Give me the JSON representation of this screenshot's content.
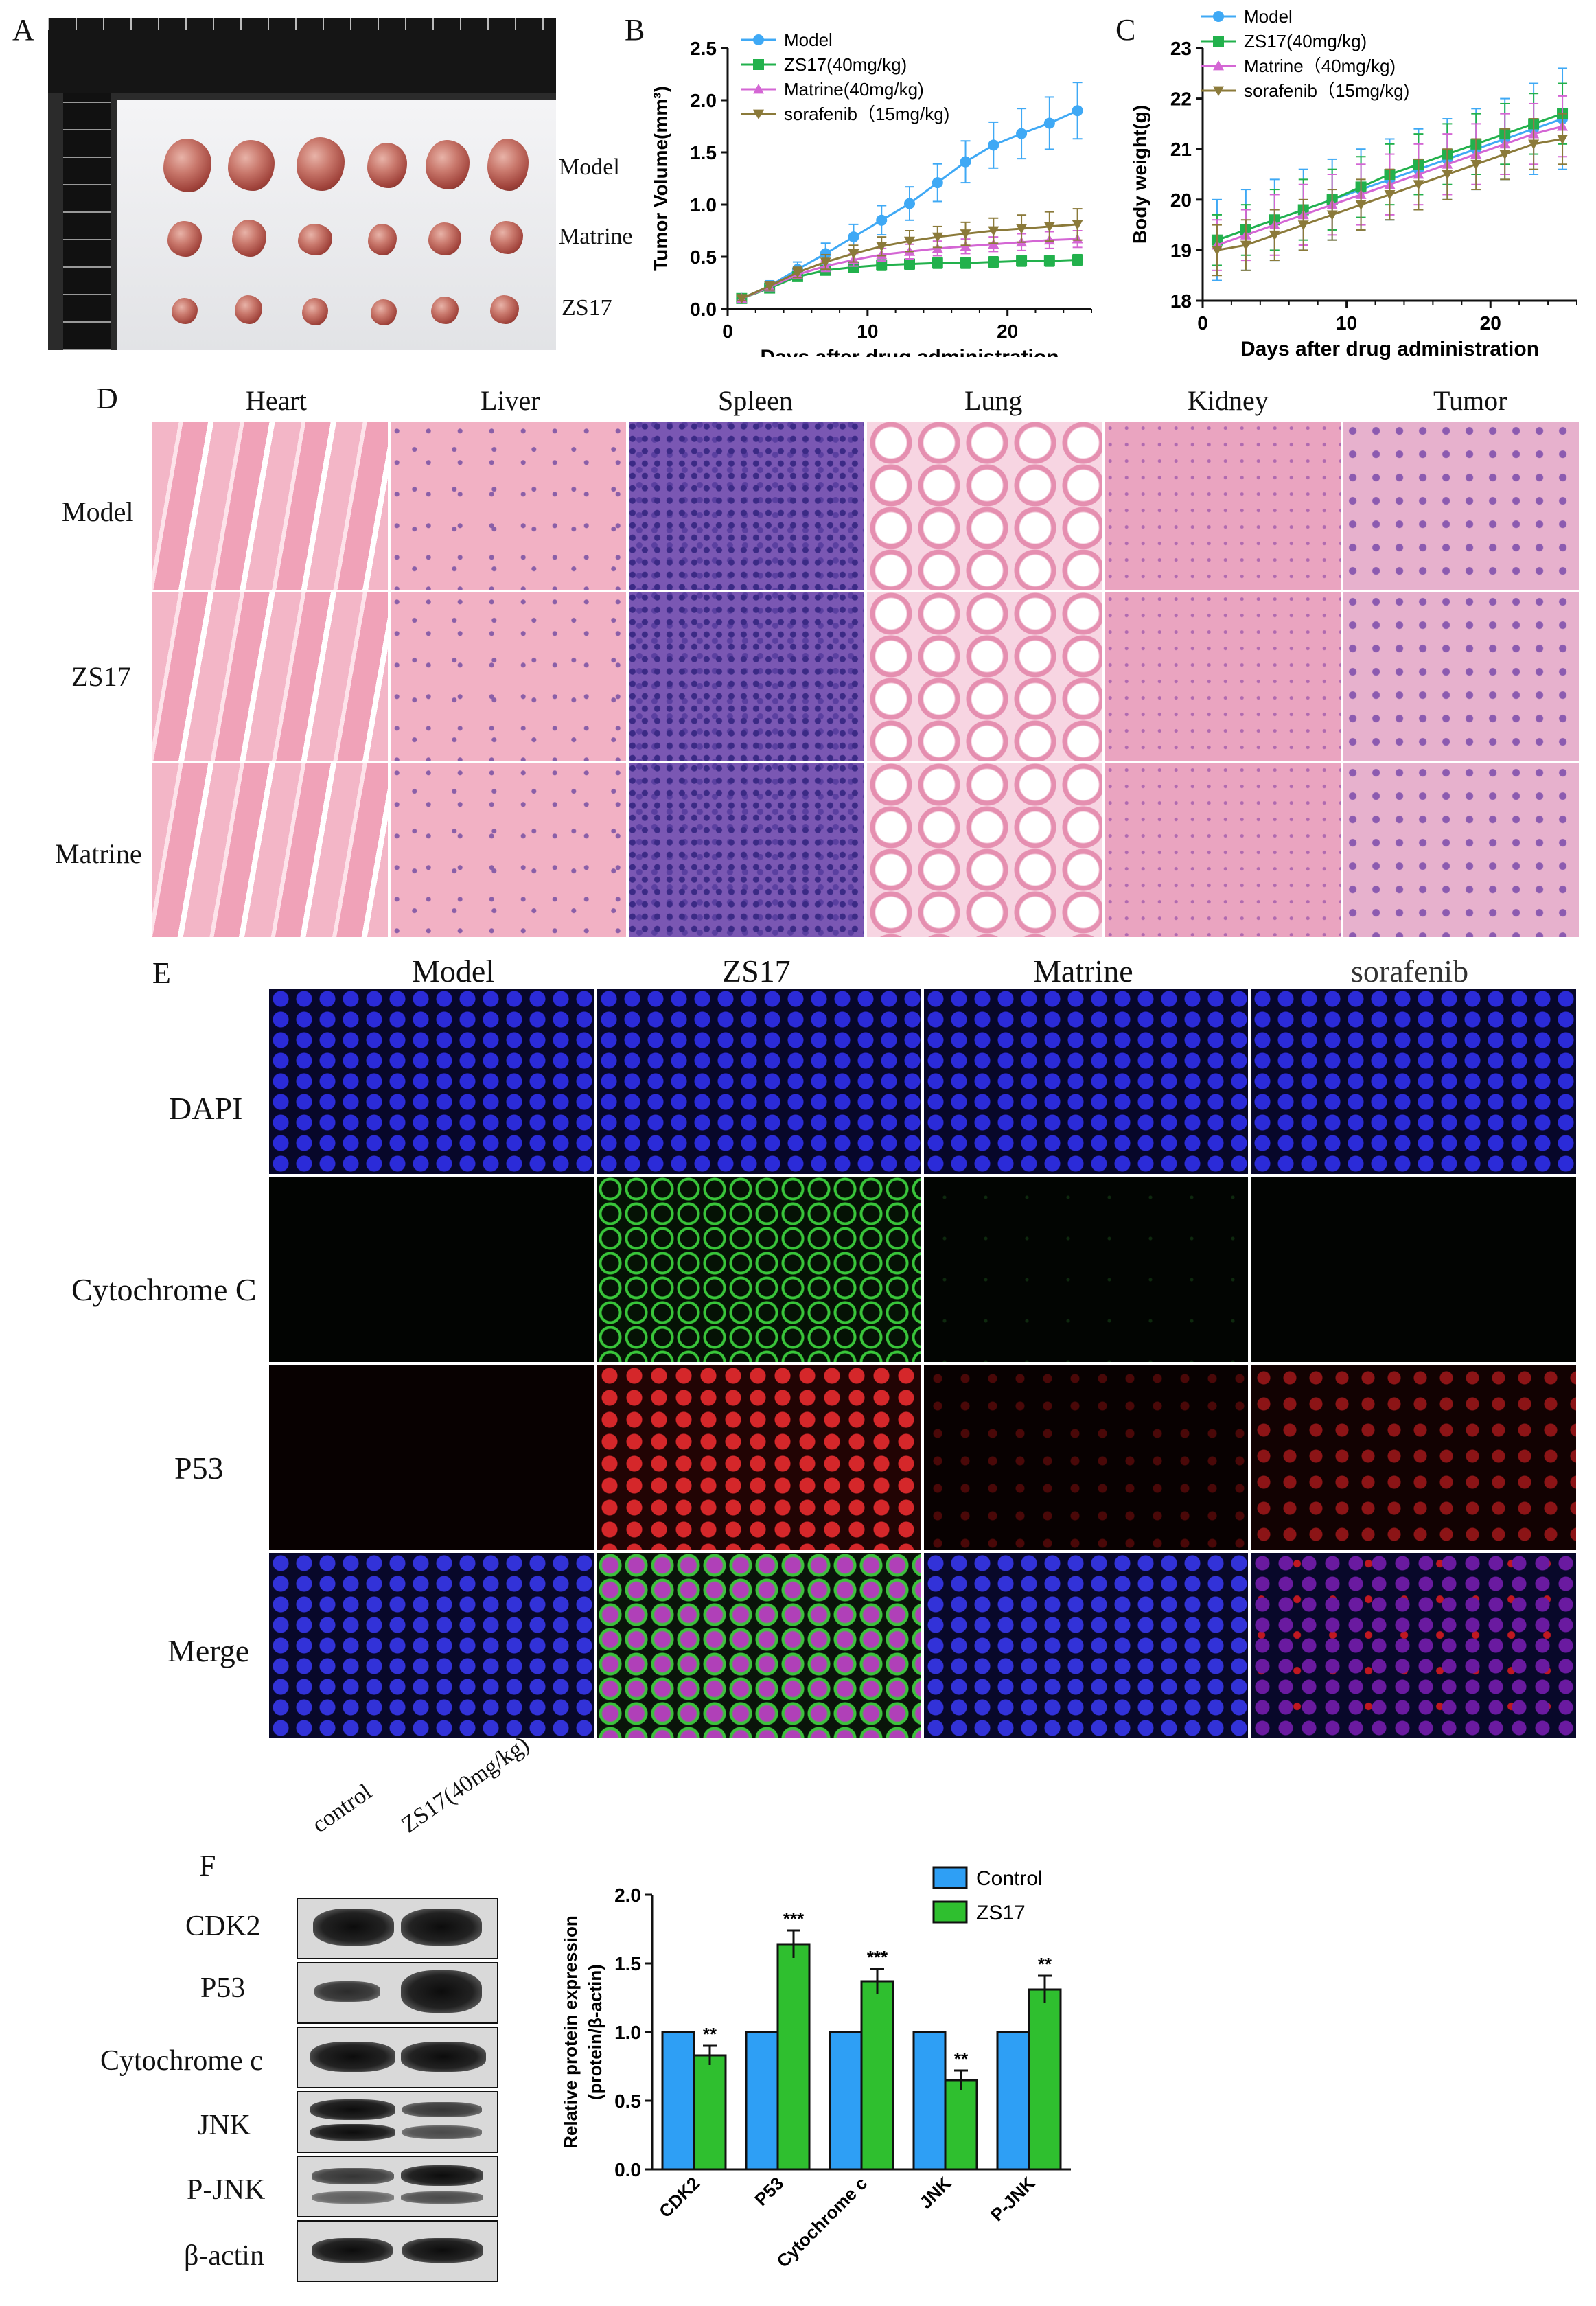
{
  "panel_A": {
    "letter": "A",
    "row_labels": [
      "Model",
      "Matrine",
      "ZS17"
    ]
  },
  "panel_B": {
    "letter": "B"
  },
  "panel_C": {
    "letter": "C"
  },
  "panel_D": {
    "letter": "D",
    "column_labels": [
      "Heart",
      "Liver",
      "Spleen",
      "Lung",
      "Kidney",
      "Tumor"
    ],
    "row_labels": [
      "Model",
      "ZS17",
      "Matrine"
    ]
  },
  "panel_E": {
    "letter": "E",
    "column_labels": [
      "Model",
      "ZS17",
      "Matrine",
      "sorafenib"
    ],
    "row_labels": [
      "DAPI",
      "Cytochrome C",
      "P53",
      "Merge"
    ]
  },
  "panel_F": {
    "letter": "F",
    "lane_labels": [
      "control",
      "ZS17(40mg/kg)"
    ],
    "blot_labels": [
      "CDK2",
      "P53",
      "Cytochrome c",
      "JNK",
      "P-JNK",
      "β-actin"
    ]
  },
  "colors": {
    "model": "#3fa9f5",
    "zs17": "#22b14c",
    "matrine": "#d466d4",
    "sorafenib": "#8b7a3a",
    "control_bar": "#2e9ff5",
    "zs17_bar": "#2fbf2f"
  },
  "chart_data": [
    {
      "id": "B",
      "type": "line",
      "xlabel": "Days after drug administration",
      "ylabel": "Tumor Volume(mm³)",
      "xlim": [
        0,
        26
      ],
      "ylim": [
        0,
        2.5
      ],
      "xticks": [
        "0",
        "10",
        "20"
      ],
      "yticks": [
        "0.0",
        "0.5",
        "1.0",
        "1.5",
        "2.0",
        "2.5"
      ],
      "legend_position": "top-left",
      "x": [
        1,
        3,
        5,
        7,
        9,
        11,
        13,
        15,
        17,
        19,
        21,
        23,
        25
      ],
      "series": [
        {
          "name": "Model",
          "marker": "circle",
          "color": "#3fa9f5",
          "values": [
            0.1,
            0.22,
            0.38,
            0.53,
            0.69,
            0.85,
            1.01,
            1.21,
            1.41,
            1.57,
            1.68,
            1.78,
            1.9
          ],
          "err": [
            0.03,
            0.05,
            0.07,
            0.1,
            0.12,
            0.14,
            0.16,
            0.18,
            0.2,
            0.22,
            0.24,
            0.25,
            0.27
          ]
        },
        {
          "name": "ZS17(40mg/kg)",
          "marker": "square",
          "color": "#22b14c",
          "values": [
            0.1,
            0.2,
            0.31,
            0.37,
            0.4,
            0.42,
            0.43,
            0.44,
            0.44,
            0.45,
            0.46,
            0.46,
            0.47
          ],
          "err": [
            0.02,
            0.03,
            0.04,
            0.04,
            0.05,
            0.05,
            0.05,
            0.05,
            0.05,
            0.05,
            0.05,
            0.05,
            0.05
          ]
        },
        {
          "name": "Matrine(40mg/kg)",
          "marker": "triangle-up",
          "color": "#d466d4",
          "values": [
            0.1,
            0.21,
            0.33,
            0.41,
            0.47,
            0.52,
            0.55,
            0.58,
            0.6,
            0.62,
            0.64,
            0.66,
            0.67
          ],
          "err": [
            0.02,
            0.03,
            0.04,
            0.05,
            0.06,
            0.06,
            0.07,
            0.07,
            0.07,
            0.07,
            0.08,
            0.08,
            0.08
          ]
        },
        {
          "name": "sorafenib（15mg/kg)",
          "marker": "triangle-down",
          "color": "#8b7a3a",
          "values": [
            0.1,
            0.22,
            0.35,
            0.45,
            0.53,
            0.6,
            0.65,
            0.69,
            0.72,
            0.75,
            0.77,
            0.79,
            0.81
          ],
          "err": [
            0.02,
            0.04,
            0.05,
            0.07,
            0.08,
            0.09,
            0.1,
            0.1,
            0.11,
            0.12,
            0.13,
            0.14,
            0.15
          ]
        }
      ]
    },
    {
      "id": "C",
      "type": "line",
      "xlabel": "Days after drug administration",
      "ylabel": "Body weight(g)",
      "xlim": [
        0,
        26
      ],
      "ylim": [
        18,
        23
      ],
      "xticks": [
        "0",
        "10",
        "20"
      ],
      "yticks": [
        "18",
        "19",
        "20",
        "21",
        "22",
        "23"
      ],
      "legend_position": "top-left",
      "x": [
        1,
        3,
        5,
        7,
        9,
        11,
        13,
        15,
        17,
        19,
        21,
        23,
        25
      ],
      "series": [
        {
          "name": "Model",
          "marker": "circle",
          "color": "#3fa9f5",
          "values": [
            19.2,
            19.4,
            19.6,
            19.8,
            20.0,
            20.2,
            20.4,
            20.6,
            20.8,
            21.0,
            21.2,
            21.4,
            21.6
          ],
          "err": [
            0.8,
            0.8,
            0.8,
            0.8,
            0.8,
            0.8,
            0.8,
            0.8,
            0.8,
            0.8,
            0.8,
            0.9,
            1.0
          ]
        },
        {
          "name": "ZS17(40mg/kg)",
          "marker": "square",
          "color": "#22b14c",
          "values": [
            19.2,
            19.4,
            19.6,
            19.8,
            20.0,
            20.25,
            20.5,
            20.7,
            20.9,
            21.1,
            21.3,
            21.5,
            21.7
          ],
          "err": [
            0.5,
            0.5,
            0.6,
            0.6,
            0.6,
            0.6,
            0.6,
            0.6,
            0.6,
            0.6,
            0.6,
            0.6,
            0.6
          ]
        },
        {
          "name": "Matrine（40mg/kg)",
          "marker": "triangle-up",
          "color": "#d466d4",
          "values": [
            19.1,
            19.3,
            19.5,
            19.7,
            19.9,
            20.1,
            20.3,
            20.5,
            20.7,
            20.9,
            21.1,
            21.3,
            21.45
          ],
          "err": [
            0.5,
            0.5,
            0.6,
            0.6,
            0.6,
            0.6,
            0.6,
            0.6,
            0.6,
            0.6,
            0.6,
            0.6,
            0.6
          ]
        },
        {
          "name": "sorafenib（15mg/kg)",
          "marker": "triangle-down",
          "color": "#8b7a3a",
          "values": [
            19.0,
            19.1,
            19.3,
            19.5,
            19.7,
            19.9,
            20.1,
            20.3,
            20.5,
            20.7,
            20.9,
            21.1,
            21.2
          ],
          "err": [
            0.5,
            0.5,
            0.5,
            0.5,
            0.5,
            0.5,
            0.5,
            0.5,
            0.5,
            0.5,
            0.5,
            0.5,
            0.5
          ]
        }
      ]
    },
    {
      "id": "F",
      "type": "bar",
      "ylabel_lines": [
        "Relative protein expression",
        "(protein/β-actin)"
      ],
      "ylim": [
        0,
        2.0
      ],
      "yticks": [
        "0.0",
        "0.5",
        "1.0",
        "1.5",
        "2.0"
      ],
      "categories": [
        "CDK2",
        "P53",
        "Cytochrome c",
        "JNK",
        "P-JNK"
      ],
      "legend_position": "top-right",
      "series": [
        {
          "name": "Control",
          "color": "#2e9ff5",
          "values": [
            1.0,
            1.0,
            1.0,
            1.0,
            1.0
          ],
          "err": [
            0,
            0,
            0,
            0,
            0
          ]
        },
        {
          "name": "ZS17",
          "color": "#2fbf2f",
          "values": [
            0.83,
            1.64,
            1.37,
            0.65,
            1.31
          ],
          "err": [
            0.07,
            0.1,
            0.09,
            0.07,
            0.1
          ],
          "significance": [
            "**",
            "***",
            "***",
            "**",
            "**"
          ]
        }
      ]
    }
  ]
}
